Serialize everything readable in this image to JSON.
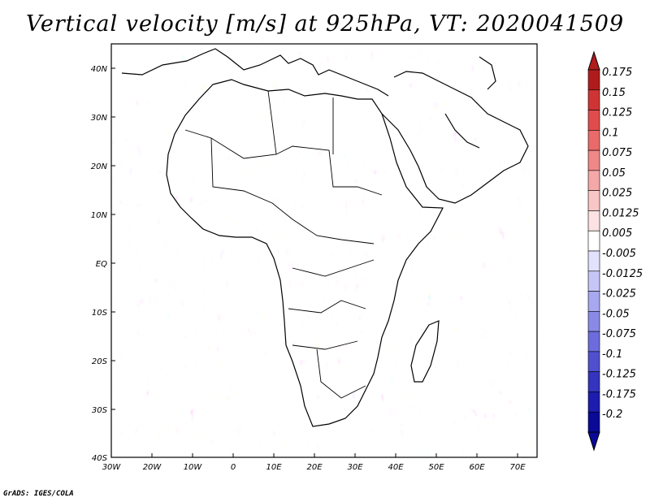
{
  "title": "Vertical velocity [m/s] at 925hPa, VT: 2020041509",
  "footer": "GrADS: IGES/COLA",
  "map": {
    "lat_labels": [
      "40N",
      "30N",
      "20N",
      "10N",
      "EQ",
      "10S",
      "20S",
      "30S",
      "40S"
    ],
    "lon_labels": [
      "30W",
      "20W",
      "10W",
      "0",
      "10E",
      "20E",
      "30E",
      "40E",
      "50E",
      "60E",
      "70E"
    ]
  },
  "colorbar": {
    "labels": [
      "0.175",
      "0.15",
      "0.125",
      "0.1",
      "0.075",
      "0.05",
      "0.025",
      "0.0125",
      "0.005",
      "-0.005",
      "-0.0125",
      "-0.025",
      "-0.05",
      "-0.075",
      "-0.1",
      "-0.125",
      "-0.175",
      "-0.2"
    ],
    "colors": [
      "#b01c1c",
      "#cf3434",
      "#e04c4c",
      "#ea6a6a",
      "#f08888",
      "#f5a8a8",
      "#f9c6c6",
      "#fce2e2",
      "#ffffff",
      "#e2e2fc",
      "#c6c6f6",
      "#a8a8f0",
      "#8a8ae6",
      "#6c6cdc",
      "#5050cf",
      "#3434bf",
      "#1c1caf",
      "#0a0a96"
    ]
  }
}
